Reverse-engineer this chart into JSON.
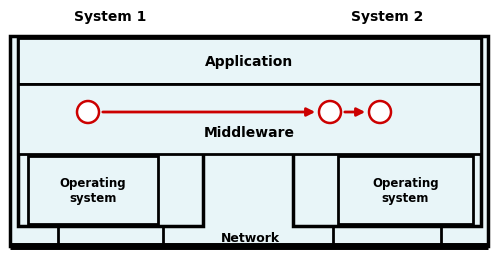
{
  "fig_width": 5.0,
  "fig_height": 2.55,
  "dpi": 100,
  "bg_color": "#ffffff",
  "border_color": "#000000",
  "system1_label": "System 1",
  "system2_label": "System 2",
  "application_label": "Application",
  "middleware_label": "Middleware",
  "os_label": "Operating\nsystem",
  "network_label": "Network",
  "arrow_color": "#cc0000",
  "light_fill": "#e8f5f8",
  "lw_outer": 2.5,
  "lw_inner": 2.0
}
